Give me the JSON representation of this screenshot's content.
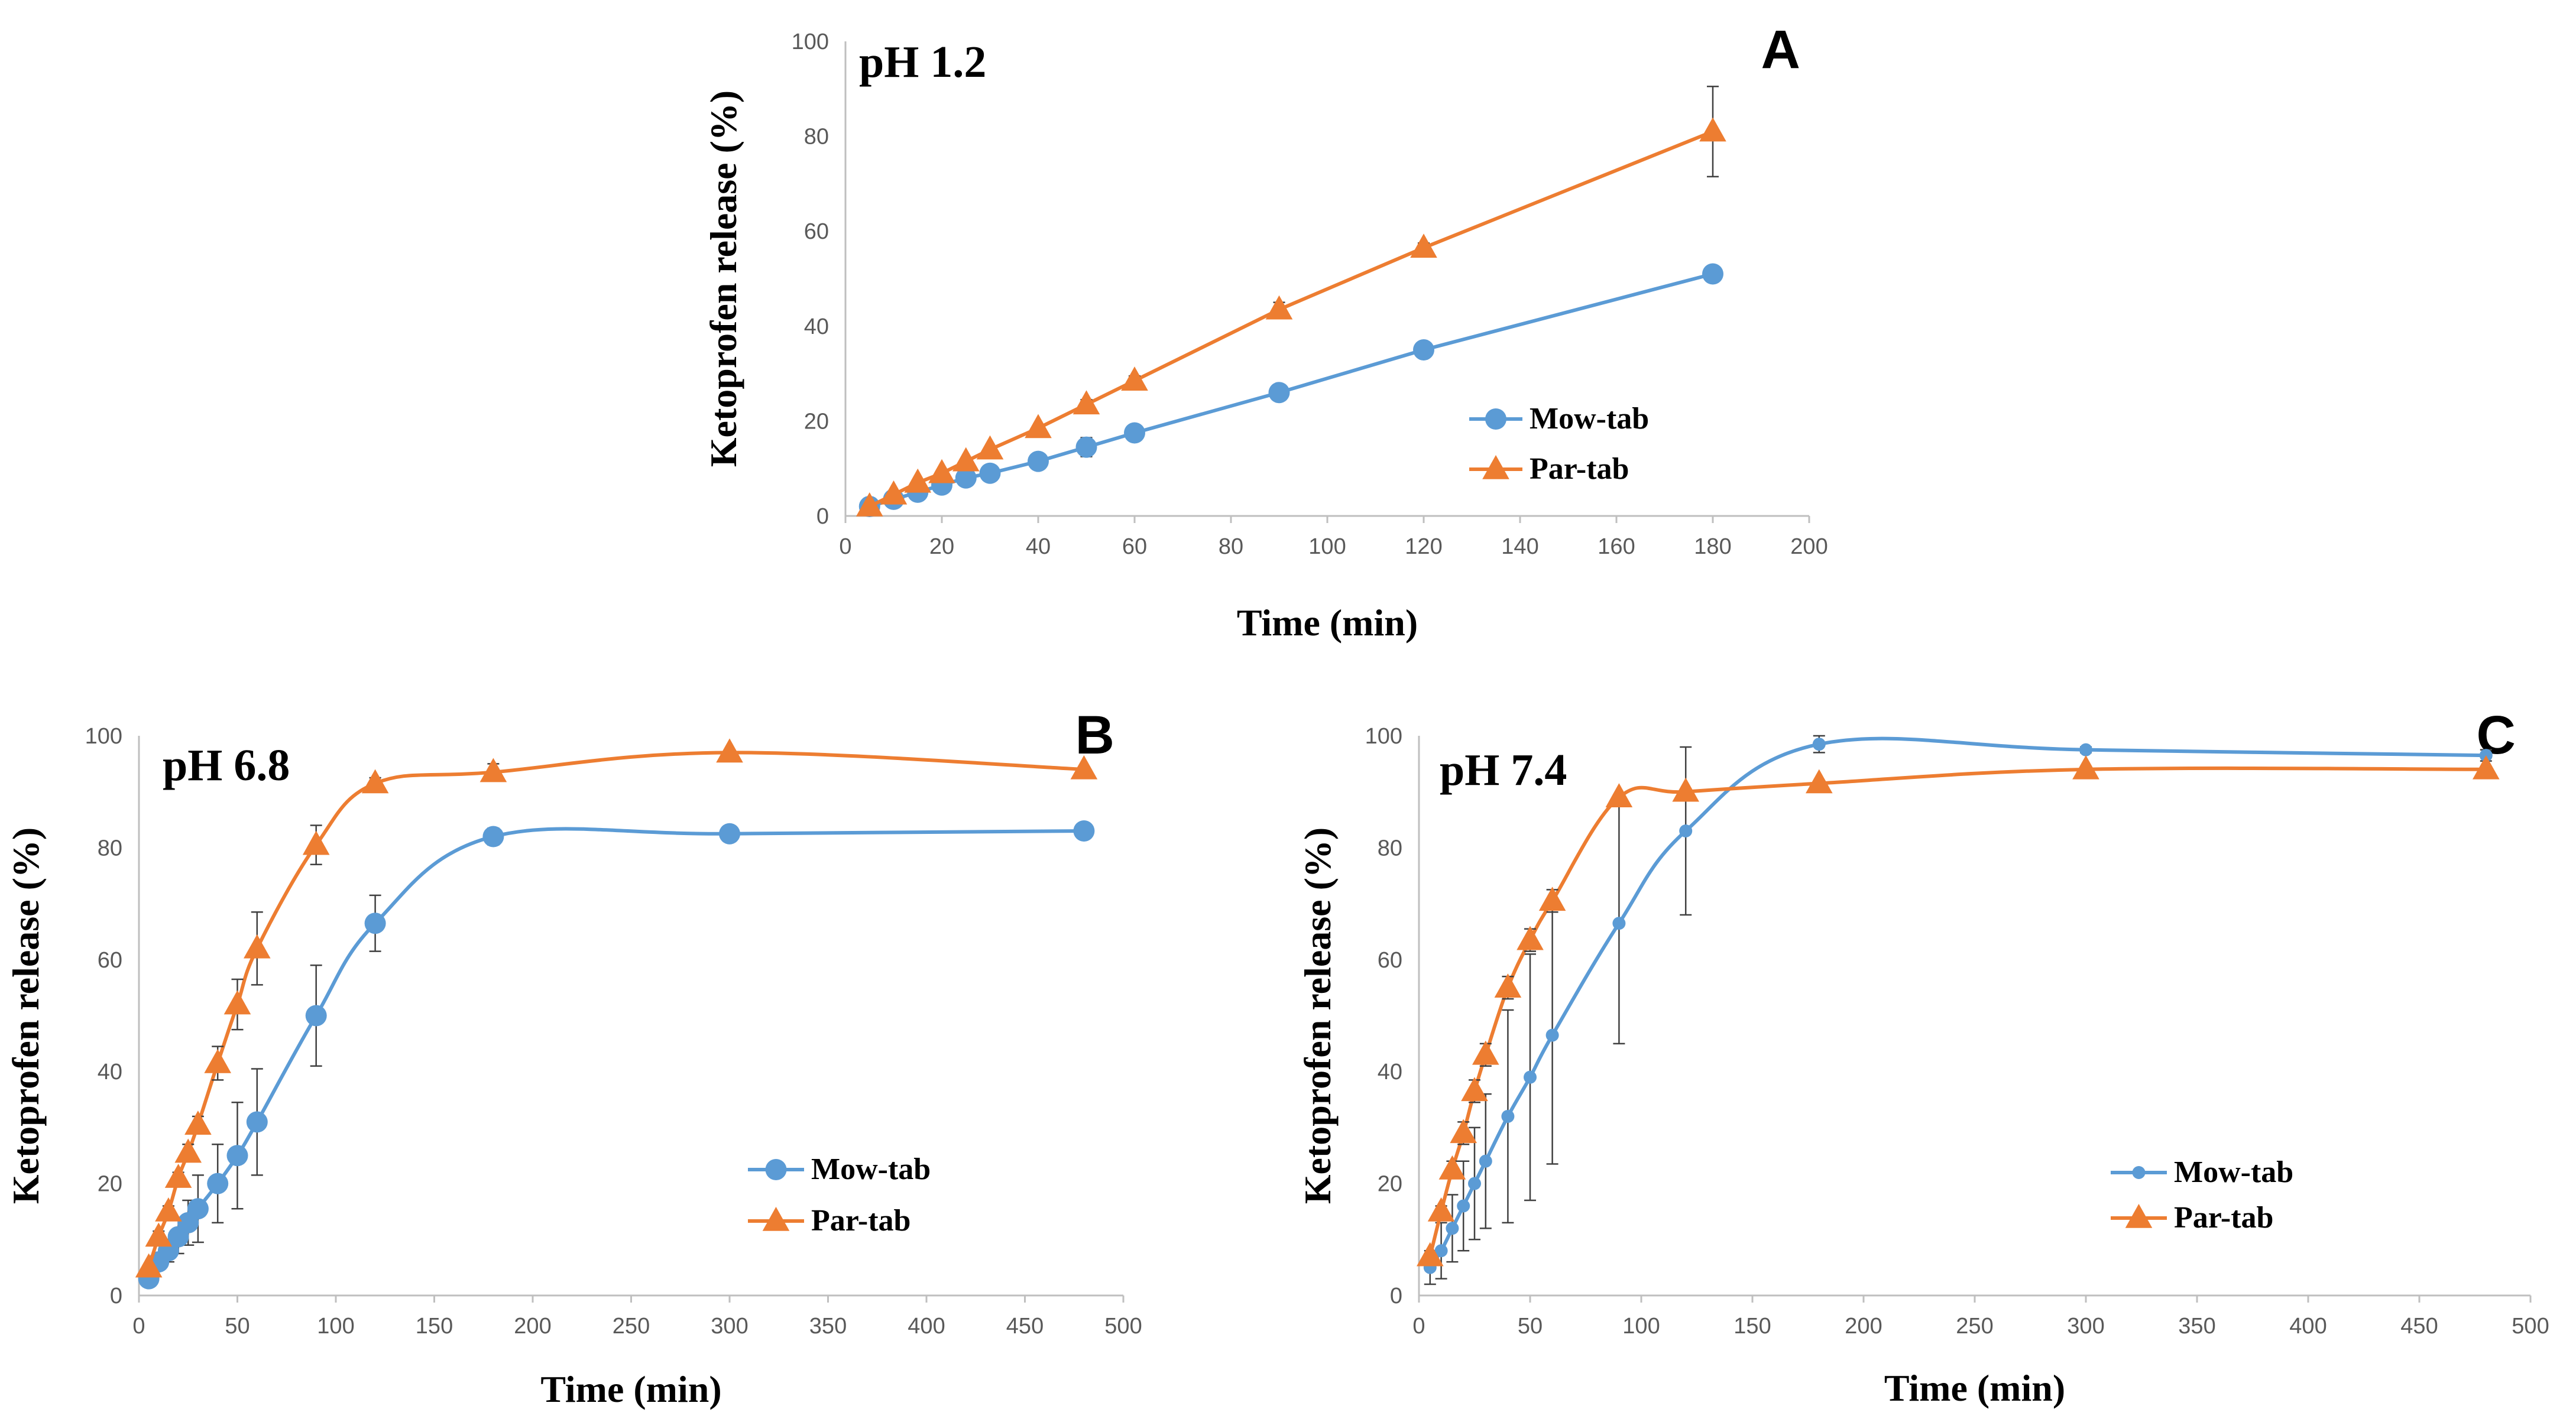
{
  "colors": {
    "mow": "#5B9BD5",
    "par": "#ED7D31",
    "axis": "#BFBFBF",
    "errorbar": "#404040"
  },
  "chart_data": [
    {
      "type": "line",
      "panel": "A",
      "title": "pH 1.2",
      "xlabel": "Time (min)",
      "ylabel": "Ketoprofen release (%)",
      "xlim": [
        0,
        200
      ],
      "ylim": [
        0,
        100
      ],
      "xticks": [
        0,
        20,
        40,
        60,
        80,
        100,
        120,
        140,
        160,
        180,
        200
      ],
      "yticks": [
        0,
        20,
        40,
        60,
        80,
        100
      ],
      "legend_position": "bottom-right",
      "smooth": false,
      "series": [
        {
          "name": "Mow-tab",
          "marker": "circle",
          "x": [
            5,
            10,
            15,
            20,
            25,
            30,
            40,
            50,
            60,
            90,
            120,
            180
          ],
          "y": [
            2,
            3.5,
            5,
            6.5,
            8,
            9,
            11.5,
            14.5,
            17.5,
            26,
            35,
            51
          ],
          "err": [
            0.5,
            0.5,
            0.5,
            0.5,
            0.5,
            0.5,
            1,
            2,
            1,
            1,
            1,
            1
          ]
        },
        {
          "name": "Par-tab",
          "marker": "triangle",
          "x": [
            5,
            10,
            15,
            20,
            25,
            30,
            40,
            50,
            60,
            90,
            120,
            180
          ],
          "y": [
            2,
            4.5,
            7,
            9,
            11.5,
            14,
            18.5,
            23.5,
            28.5,
            43.5,
            56.5,
            81
          ],
          "err": [
            0.5,
            0.5,
            0.5,
            0.5,
            0.5,
            0.5,
            0.5,
            1,
            1,
            1.5,
            1,
            9.5
          ]
        }
      ]
    },
    {
      "type": "line",
      "panel": "B",
      "title": "pH 6.8",
      "xlabel": "Time (min)",
      "ylabel": "Ketoprofen release (%)",
      "xlim": [
        0,
        500
      ],
      "ylim": [
        0,
        100
      ],
      "xticks": [
        0,
        50,
        100,
        150,
        200,
        250,
        300,
        350,
        400,
        450,
        500
      ],
      "yticks": [
        0,
        20,
        40,
        60,
        80,
        100
      ],
      "legend_position": "bottom-right",
      "smooth": true,
      "series": [
        {
          "name": "Mow-tab",
          "marker": "circle",
          "x": [
            5,
            10,
            15,
            20,
            25,
            30,
            40,
            50,
            60,
            90,
            120,
            180,
            300,
            480
          ],
          "y": [
            3,
            6,
            8,
            10.5,
            13,
            15.5,
            20,
            25,
            31,
            50,
            66.5,
            82,
            82.5,
            83
          ],
          "err": [
            0.5,
            1,
            2,
            3,
            4,
            6,
            7,
            9.5,
            9.5,
            9,
            5,
            1.5,
            0.5,
            0.5
          ]
        },
        {
          "name": "Par-tab",
          "marker": "triangle",
          "x": [
            5,
            10,
            15,
            20,
            25,
            30,
            40,
            50,
            60,
            90,
            120,
            180,
            300,
            480
          ],
          "y": [
            5,
            10.5,
            15,
            21,
            25.5,
            30.5,
            41.5,
            52,
            62,
            80.5,
            91.5,
            93.5,
            97,
            94
          ],
          "err": [
            0.5,
            1,
            1,
            1,
            1.5,
            1.5,
            3,
            4.5,
            6.5,
            3.5,
            1,
            1.5,
            0.5,
            0.5
          ]
        }
      ]
    },
    {
      "type": "line",
      "panel": "C",
      "title": "pH 7.4",
      "xlabel": "Time (min)",
      "ylabel": "Ketoprofen release (%)",
      "xlim": [
        0,
        500
      ],
      "ylim": [
        0,
        100
      ],
      "xticks": [
        0,
        50,
        100,
        150,
        200,
        250,
        300,
        350,
        400,
        450,
        500
      ],
      "yticks": [
        0,
        20,
        40,
        60,
        80,
        100
      ],
      "legend_position": "bottom-right",
      "smooth": true,
      "series": [
        {
          "name": "Mow-tab",
          "marker": "circle-small",
          "x": [
            5,
            10,
            15,
            20,
            25,
            30,
            40,
            50,
            60,
            90,
            120,
            180,
            300,
            480
          ],
          "y": [
            5,
            8,
            12,
            16,
            20,
            24,
            32,
            39,
            46.5,
            66.5,
            83,
            98.5,
            97.5,
            96.5
          ],
          "err": [
            3,
            5,
            6,
            8,
            10,
            12,
            19,
            22,
            23,
            21.5,
            15,
            1.5,
            0.5,
            1
          ]
        },
        {
          "name": "Par-tab",
          "marker": "triangle",
          "x": [
            5,
            10,
            15,
            20,
            25,
            30,
            40,
            50,
            60,
            90,
            120,
            180,
            300,
            480
          ],
          "y": [
            7,
            15,
            22.5,
            29,
            36.5,
            43,
            55,
            63.5,
            70.5,
            89,
            90,
            91.5,
            94,
            94
          ],
          "err": [
            0.5,
            1,
            1.5,
            2,
            2,
            2,
            2,
            2,
            2,
            0.5,
            0.5,
            0.5,
            0.5,
            0.5
          ]
        }
      ]
    }
  ]
}
